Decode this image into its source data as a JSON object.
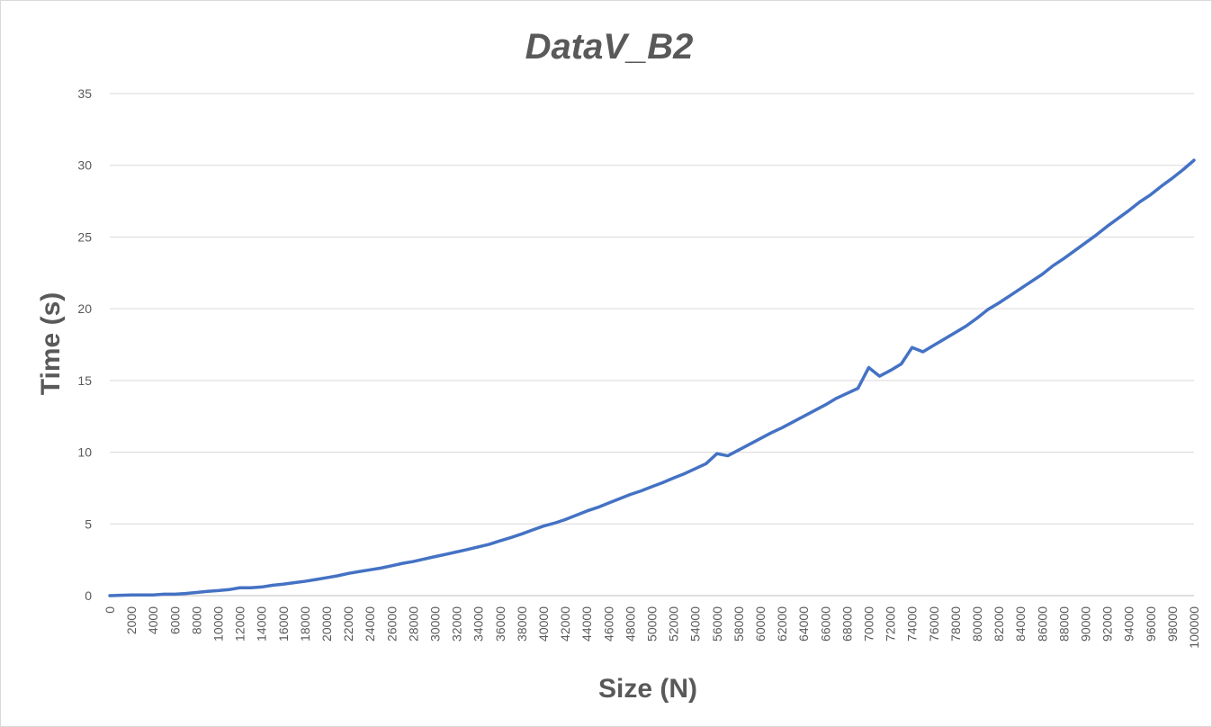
{
  "chart_data": {
    "type": "line",
    "title": "DataV_B2",
    "xlabel": "Size (N)",
    "ylabel": "Time (s)",
    "ylim": [
      0,
      35
    ],
    "yticks": [
      0,
      5,
      10,
      15,
      20,
      25,
      30,
      35
    ],
    "grid": true,
    "legend": "none",
    "x": [
      0,
      1000,
      2000,
      3000,
      4000,
      5000,
      6000,
      7000,
      8000,
      9000,
      10000,
      11000,
      12000,
      13000,
      14000,
      15000,
      16000,
      17000,
      18000,
      19000,
      20000,
      21000,
      22000,
      23000,
      24000,
      25000,
      26000,
      27000,
      28000,
      29000,
      30000,
      31000,
      32000,
      33000,
      34000,
      35000,
      36000,
      37000,
      38000,
      39000,
      40000,
      41000,
      42000,
      43000,
      44000,
      45000,
      46000,
      47000,
      48000,
      49000,
      50000,
      51000,
      52000,
      53000,
      54000,
      55000,
      56000,
      57000,
      58000,
      59000,
      60000,
      61000,
      62000,
      63000,
      64000,
      65000,
      66000,
      67000,
      68000,
      69000,
      70000,
      71000,
      72000,
      73000,
      74000,
      75000,
      76000,
      77000,
      78000,
      79000,
      80000,
      81000,
      82000,
      83000,
      84000,
      85000,
      86000,
      87000,
      88000,
      89000,
      90000,
      91000,
      92000,
      93000,
      94000,
      95000,
      96000,
      97000,
      98000,
      99000,
      100000
    ],
    "xtick_labels": [
      "0",
      "2000",
      "4000",
      "6000",
      "8000",
      "10000",
      "12000",
      "14000",
      "16000",
      "18000",
      "20000",
      "22000",
      "24000",
      "26000",
      "28000",
      "30000",
      "32000",
      "34000",
      "36000",
      "38000",
      "40000",
      "42000",
      "44000",
      "46000",
      "48000",
      "50000",
      "52000",
      "54000",
      "56000",
      "58000",
      "60000",
      "62000",
      "64000",
      "66000",
      "68000",
      "70000",
      "72000",
      "74000",
      "76000",
      "78000",
      "80000",
      "82000",
      "84000",
      "86000",
      "88000",
      "90000",
      "92000",
      "94000",
      "96000",
      "98000",
      "100000"
    ],
    "series": [
      {
        "name": "",
        "color": "#4472c4",
        "values": [
          0.0,
          0.02,
          0.05,
          0.05,
          0.05,
          0.1,
          0.1,
          0.15,
          0.22,
          0.3,
          0.35,
          0.42,
          0.55,
          0.55,
          0.6,
          0.72,
          0.8,
          0.9,
          1.0,
          1.12,
          1.25,
          1.38,
          1.55,
          1.68,
          1.8,
          1.92,
          2.08,
          2.25,
          2.38,
          2.55,
          2.72,
          2.88,
          3.05,
          3.22,
          3.4,
          3.58,
          3.82,
          4.05,
          4.3,
          4.58,
          4.85,
          5.05,
          5.3,
          5.6,
          5.9,
          6.15,
          6.45,
          6.75,
          7.05,
          7.3,
          7.6,
          7.88,
          8.2,
          8.5,
          8.85,
          9.2,
          9.9,
          9.75,
          10.15,
          10.55,
          10.95,
          11.35,
          11.7,
          12.1,
          12.5,
          12.9,
          13.3,
          13.75,
          14.1,
          14.45,
          15.9,
          15.3,
          15.7,
          16.15,
          17.3,
          17.0,
          17.45,
          17.9,
          18.35,
          18.8,
          19.35,
          19.95,
          20.4,
          20.9,
          21.4,
          21.9,
          22.4,
          23.0,
          23.5,
          24.05,
          24.6,
          25.15,
          25.75,
          26.3,
          26.85,
          27.45,
          27.95,
          28.55,
          29.1,
          29.7,
          30.35
        ]
      }
    ]
  }
}
